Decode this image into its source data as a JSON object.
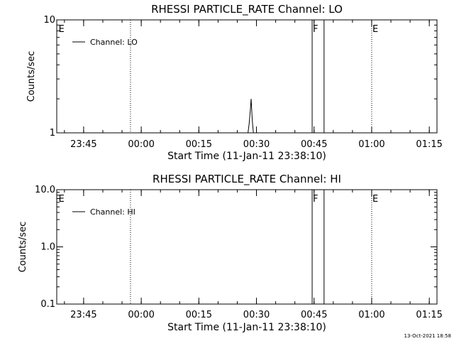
{
  "footer": {
    "timestamp": "13-Oct-2021 18:58"
  },
  "colors": {
    "background": "#ffffff",
    "foreground": "#000000"
  },
  "chart_data": [
    {
      "type": "line",
      "title": "RHESSI PARTICLE_RATE Channel: LO",
      "xlabel": "Start Time (11-Jan-11 23:38:10)",
      "ylabel": "Counts/sec",
      "yscale": "log",
      "ylim": [
        1,
        10
      ],
      "ytick_values": [
        1,
        10
      ],
      "ytick_labels": [
        "1",
        "10"
      ],
      "xlim_minutes": [
        0,
        99
      ],
      "xtick_minutes": [
        7,
        22,
        37,
        52,
        67,
        82,
        97
      ],
      "xtick_labels": [
        "23:45",
        "00:00",
        "00:15",
        "00:30",
        "00:45",
        "01:00",
        "01:15"
      ],
      "grid": false,
      "legend": {
        "position": "top-left",
        "entries": [
          "Channel: LO"
        ]
      },
      "series": [
        {
          "name": "Channel: LO",
          "x_minutes": [
            49.8,
            50.1,
            50.4,
            50.6,
            50.9,
            51.2
          ],
          "values": [
            1.0,
            1.2,
            1.6,
            2.0,
            1.3,
            1.0
          ]
        }
      ],
      "markers": [
        {
          "label": "E",
          "x_minutes": 0.3,
          "style": "none"
        },
        {
          "label": "",
          "x_minutes": 19.2,
          "style": "dotted"
        },
        {
          "label": "F",
          "x_minutes": 66.5,
          "style": "solid"
        },
        {
          "label": "",
          "x_minutes": 69.6,
          "style": "solid"
        },
        {
          "label": "E",
          "x_minutes": 82.0,
          "style": "dotted"
        },
        {
          "label": "",
          "x_minutes": 101.5,
          "style": "dotted"
        }
      ]
    },
    {
      "type": "line",
      "title": "RHESSI PARTICLE_RATE Channel: HI",
      "xlabel": "Start Time (11-Jan-11 23:38:10)",
      "ylabel": "Counts/sec",
      "yscale": "log",
      "ylim": [
        0.1,
        10
      ],
      "ytick_values": [
        0.1,
        1,
        10
      ],
      "ytick_labels": [
        "0.1",
        "1.0",
        "10.0"
      ],
      "xlim_minutes": [
        0,
        99
      ],
      "xtick_minutes": [
        7,
        22,
        37,
        52,
        67,
        82,
        97
      ],
      "xtick_labels": [
        "23:45",
        "00:00",
        "00:15",
        "00:30",
        "00:45",
        "01:00",
        "01:15"
      ],
      "grid": false,
      "legend": {
        "position": "top-left",
        "entries": [
          "Channel: HI"
        ]
      },
      "series": [
        {
          "name": "Channel: HI",
          "x_minutes": [],
          "values": []
        }
      ],
      "markers": [
        {
          "label": "E",
          "x_minutes": 0.3,
          "style": "none"
        },
        {
          "label": "",
          "x_minutes": 19.2,
          "style": "dotted"
        },
        {
          "label": "F",
          "x_minutes": 66.5,
          "style": "solid"
        },
        {
          "label": "",
          "x_minutes": 69.6,
          "style": "solid"
        },
        {
          "label": "E",
          "x_minutes": 82.0,
          "style": "dotted"
        },
        {
          "label": "",
          "x_minutes": 101.5,
          "style": "dotted"
        }
      ]
    }
  ]
}
